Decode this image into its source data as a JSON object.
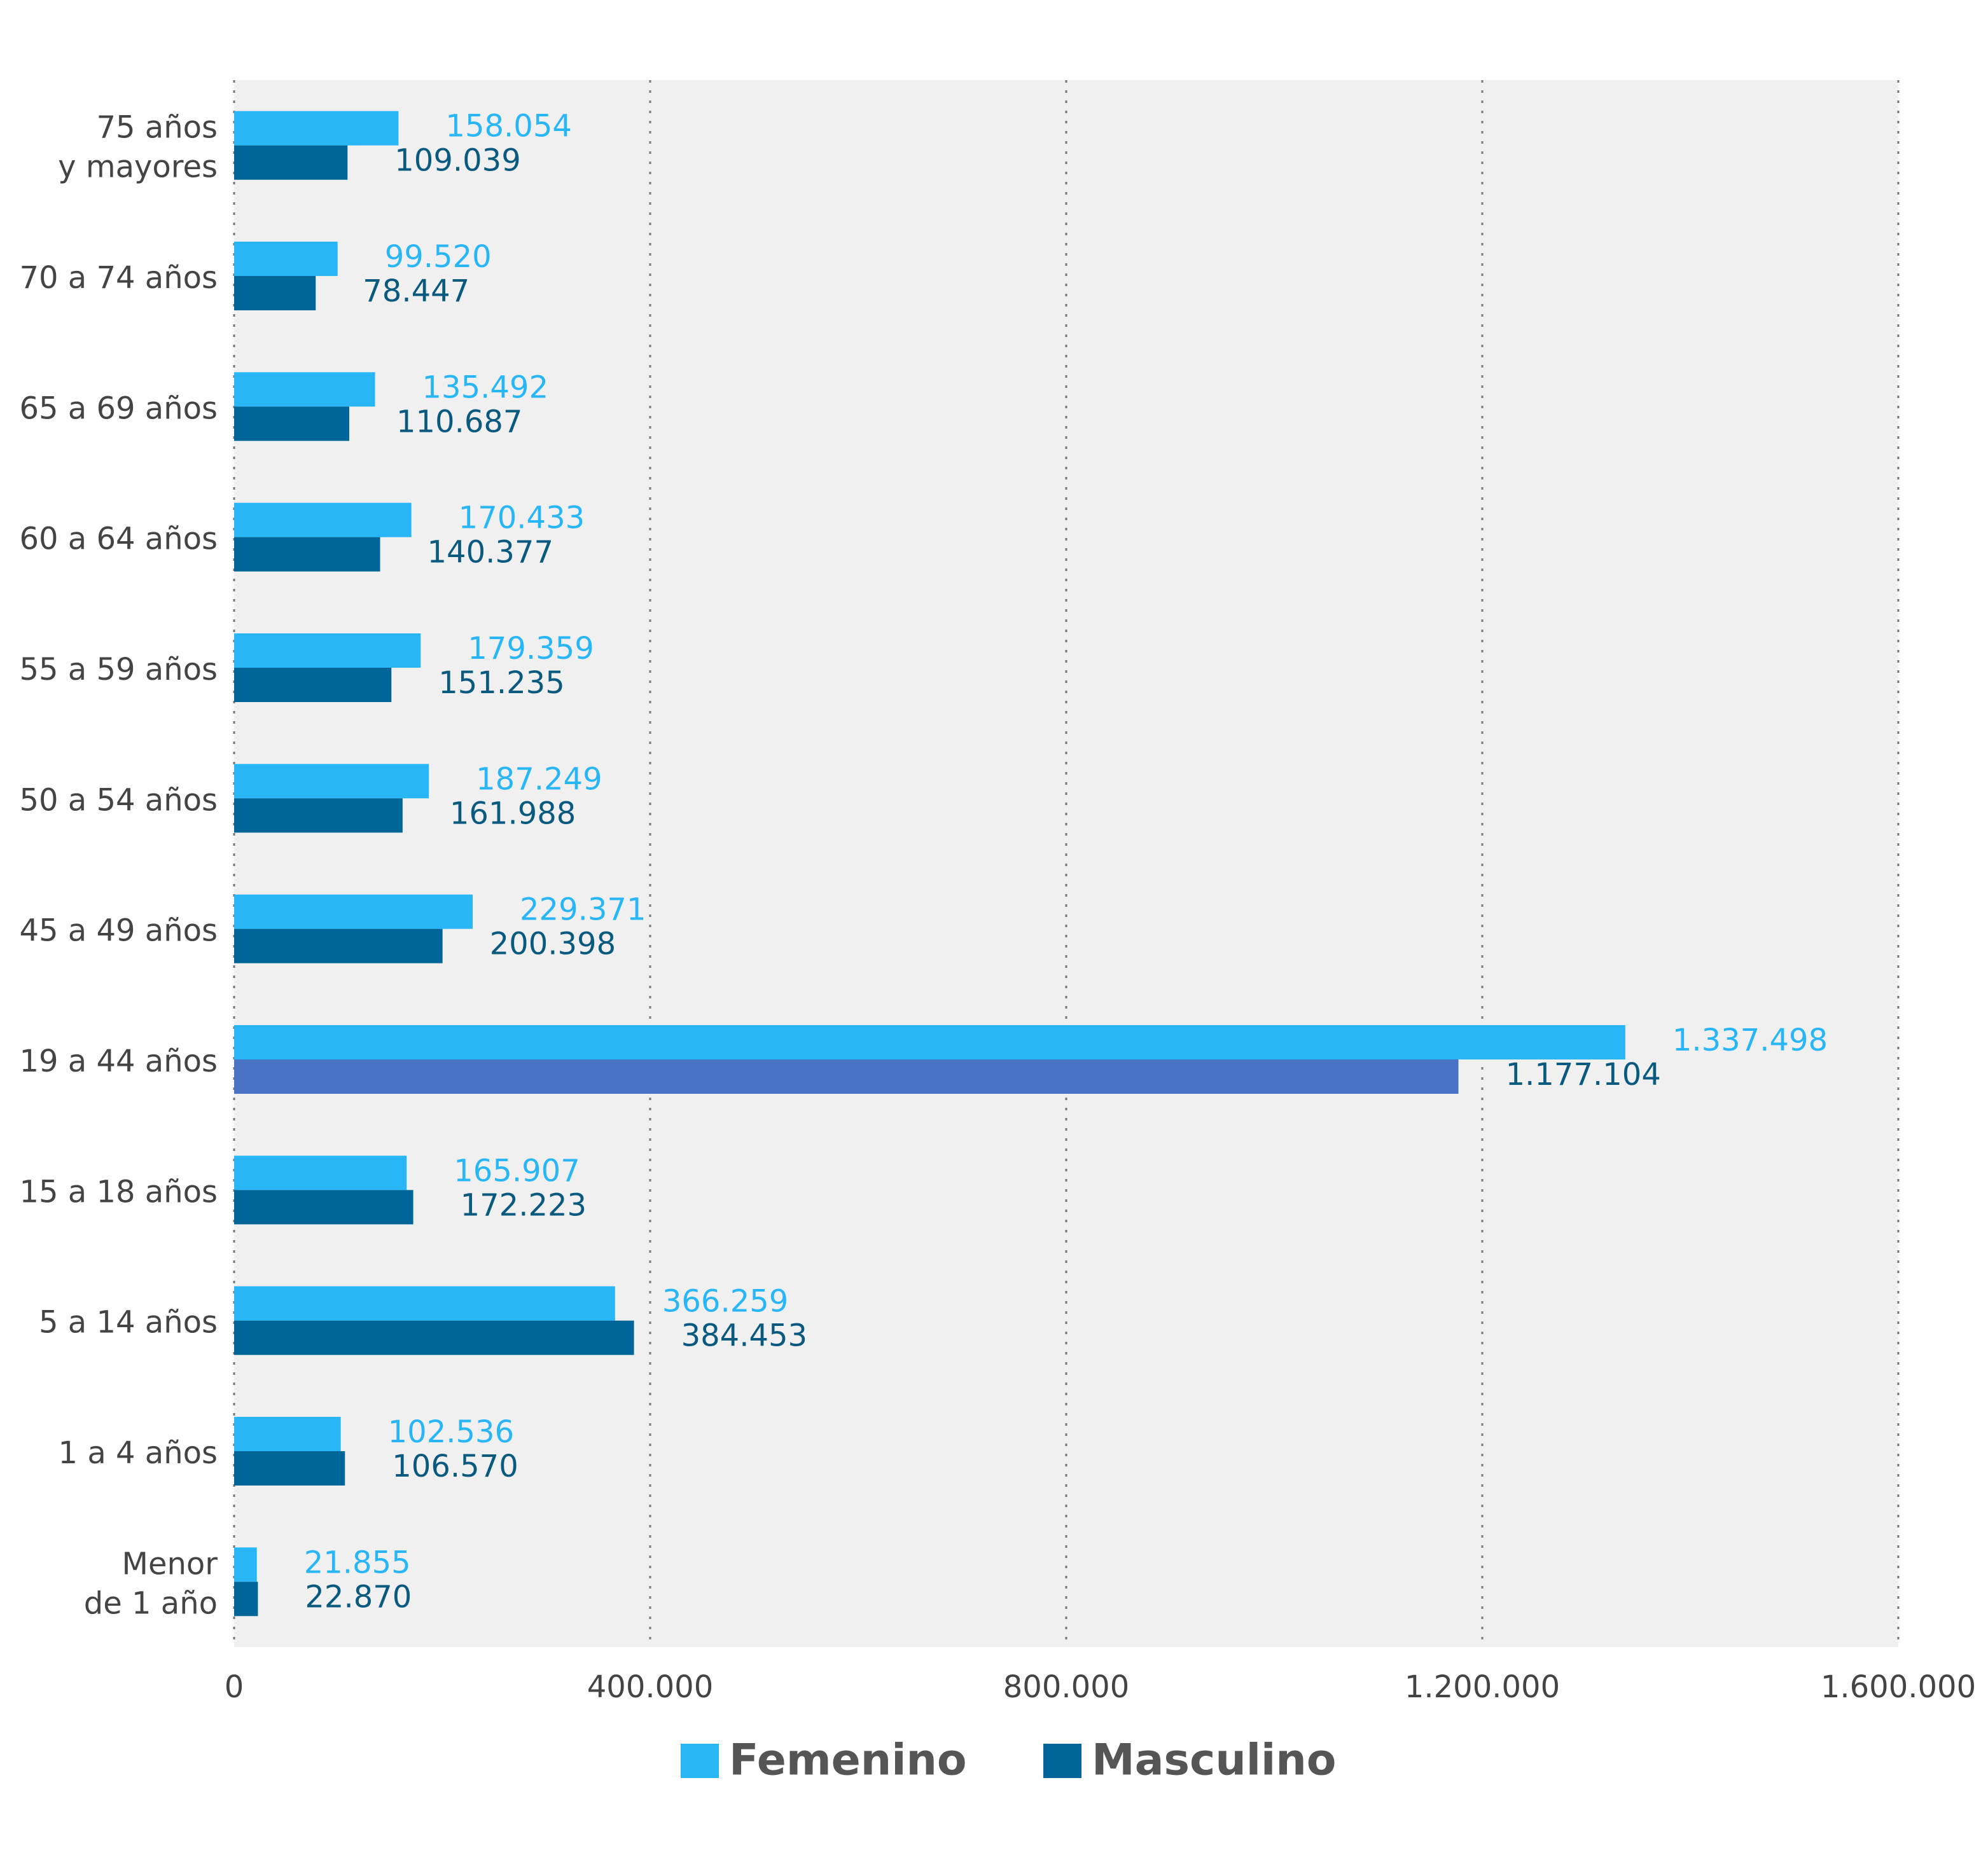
{
  "chart_data": {
    "type": "hbar",
    "categories": [
      "75 años\ny mayores",
      "70 a 74 años",
      "65 a 69 años",
      "60 a 64 años",
      "55 a 59 años",
      "50 a 54 años",
      "45 a 49 años",
      "19 a 44 años",
      "15 a 18 años",
      "5 a 14 años",
      "1 a 4 años",
      "Menor\nde 1 año"
    ],
    "series": [
      {
        "name": "Femenino",
        "color": "#29b6f6",
        "values": [
          158054,
          99520,
          135492,
          170433,
          179359,
          187249,
          229371,
          1337498,
          165907,
          366259,
          102536,
          21855
        ],
        "value_labels": [
          "158.054",
          "99.520",
          "135.492",
          "170.433",
          "179.359",
          "187.249",
          "229.371",
          "1.337.498",
          "165.907",
          "366.259",
          "102.536",
          "21.855"
        ]
      },
      {
        "name": "Masculino",
        "color": "#006699",
        "colors": [
          "#006699",
          "#006699",
          "#006699",
          "#006699",
          "#006699",
          "#006699",
          "#006699",
          "#4a72c4",
          "#006699",
          "#006699",
          "#006699",
          "#006699"
        ],
        "values": [
          109039,
          78447,
          110687,
          140377,
          151235,
          161988,
          200398,
          1177104,
          172223,
          384453,
          106570,
          22870
        ],
        "value_labels": [
          "109.039",
          "78.447",
          "110.687",
          "140.377",
          "151.235",
          "161.988",
          "200.398",
          "1.177.104",
          "172.223",
          "384.453",
          "106.570",
          "22.870"
        ]
      }
    ],
    "xlim": [
      0,
      1600000
    ],
    "xticks": [
      0,
      {
        "value": 400000,
        "label": "400.000"
      },
      {
        "value": 800000,
        "label": "800.000"
      },
      {
        "value": 1200000,
        "label": "1.200.000"
      },
      {
        "value": 1600000,
        "label": "1.600.000"
      }
    ],
    "grid": true,
    "legend": "bottom"
  }
}
